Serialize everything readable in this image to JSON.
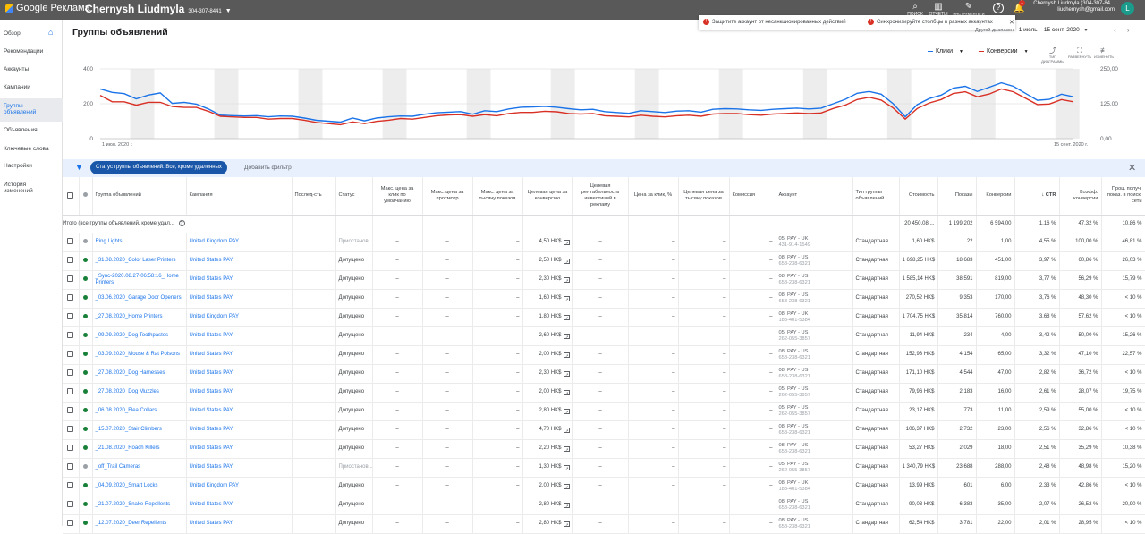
{
  "topbar": {
    "product": "Google Реклама",
    "account_name": "Chernysh Liudmyla",
    "account_id": "304-307-8441",
    "tools": [
      {
        "icon": "search-icon",
        "label": "ПОИСК"
      },
      {
        "icon": "chart-icon",
        "label": "ОТЧЕТЫ"
      },
      {
        "icon": "wrench-icon",
        "label": "ИНСТРУМЕНТЫ И НАСТРОЙКИ"
      }
    ],
    "notifications_count": "1",
    "user_line1": "Chernysh Liudmyla (304-307-84...",
    "user_line2": "liuchernysh@gmail.com",
    "avatar_letter": "L"
  },
  "banner": {
    "alert1": "Защитите аккаунт от несанкционированных действий",
    "alert2": "Синхронизируйте столбцы в разных аккаунтах"
  },
  "sidebar": {
    "items": [
      {
        "label": "Обзор"
      },
      {
        "label": "Рекомендации"
      },
      {
        "label": "Аккаунты"
      },
      {
        "label": "Кампании"
      },
      {
        "label": "Группы объявлений",
        "active": true
      },
      {
        "label": "Объявления"
      },
      {
        "label": "Ключевые слова"
      },
      {
        "label": "Настройки"
      },
      {
        "label": "История изменений"
      }
    ]
  },
  "header": {
    "title": "Группы объявлений",
    "date_label": "Другой диапазон",
    "date_range": "1 июль – 15 сент. 2020"
  },
  "chart_data": {
    "type": "line",
    "x_start_label": "1 июл. 2020 г.",
    "x_end_label": "15 сент. 2020 г.",
    "left_axis_ticks": [
      "400",
      "200",
      "0"
    ],
    "right_axis_ticks": [
      "250,00",
      "125,00",
      "0,00"
    ],
    "left_ylim": [
      0,
      400
    ],
    "right_ylim": [
      0,
      250
    ],
    "grid": true,
    "series": [
      {
        "name": "Клики",
        "color": "#1a73e8",
        "axis": "left",
        "values": [
          285,
          265,
          258,
          228,
          250,
          262,
          202,
          208,
          198,
          170,
          135,
          132,
          130,
          132,
          125,
          130,
          128,
          118,
          105,
          100,
          95,
          118,
          102,
          118,
          125,
          130,
          128,
          140,
          148,
          152,
          155,
          140,
          160,
          155,
          170,
          180,
          182,
          185,
          180,
          172,
          165,
          168,
          155,
          150,
          145,
          160,
          155,
          150,
          158,
          160,
          152,
          168,
          172,
          170,
          165,
          162,
          168,
          172,
          175,
          170,
          175,
          200,
          225,
          260,
          270,
          255,
          200,
          125,
          195,
          230,
          250,
          290,
          300,
          270,
          295,
          320,
          300,
          260,
          220,
          225,
          255,
          240
        ]
      },
      {
        "name": "Конверсии",
        "color": "#d93025",
        "axis": "right",
        "values": [
          155,
          132,
          132,
          120,
          130,
          130,
          115,
          112,
          112,
          98,
          80,
          78,
          76,
          76,
          70,
          72,
          72,
          66,
          58,
          54,
          50,
          60,
          54,
          62,
          66,
          72,
          70,
          76,
          82,
          85,
          86,
          80,
          86,
          82,
          90,
          94,
          94,
          98,
          96,
          90,
          88,
          90,
          82,
          80,
          78,
          84,
          80,
          78,
          82,
          84,
          80,
          88,
          90,
          90,
          86,
          84,
          88,
          90,
          92,
          90,
          92,
          108,
          120,
          140,
          148,
          138,
          110,
          70,
          108,
          128,
          140,
          162,
          168,
          150,
          160,
          178,
          168,
          145,
          122,
          124,
          140,
          132
        ]
      }
    ],
    "tools": [
      "ТИП ДИАГРАММЫ",
      "РАЗВЕРНУТЬ",
      "ИЗМЕНИТЬ"
    ]
  },
  "filter": {
    "chip": "Статус группы объявлений: Все, кроме удаленных",
    "add": "Добавить фильтр"
  },
  "table": {
    "headers": [
      "Группа объявлений",
      "Кампания",
      "Послед-сть",
      "Статус",
      "Макс. цена за клик по умолчанию",
      "Макс. цена за просмотр",
      "Макс. цена за тысячу показов",
      "Целевая цена за конверсию",
      "Целевая рентабельность инвестиций в рекламу",
      "Цена за клик, %",
      "Целевая цена за тысячу показов",
      "Комиссия",
      "Аккаунт",
      "Тип группы объявлений",
      "Стоимость",
      "Показы",
      "Конверсии",
      "CTR",
      "Коэфф. конверсии",
      "Проц. получ. показ. в поиск. сети"
    ],
    "total": {
      "label": "Итого (все группы объявлений, кроме удал...",
      "cost": "20 450,08 ...",
      "impr": "1 199 202",
      "conv": "6 594,00",
      "ctr": "1,16 %",
      "conv_rate": "47,32 %",
      "share": "10,86 %"
    },
    "rows": [
      {
        "status_dot": "grey",
        "name": "Ring Lights",
        "campaign": "United Kingdom PAY",
        "status": "Приостанов...",
        "bid": "4,50 HK$",
        "account": "05. PAY - UK",
        "account_id": "431-914-1549",
        "type": "Стандартная",
        "cost": "1,60 HK$",
        "impr": "22",
        "conv": "1,00",
        "ctr": "4,55 %",
        "conv_rate": "100,00 %",
        "share": "46,81 %"
      },
      {
        "status_dot": "green",
        "name": "_31.08.2020_Color Laser Printers",
        "campaign": "United States PAY",
        "status": "Допущено",
        "bid": "2,50 HK$",
        "account": "08. PAY - US",
        "account_id": "658-238-6321",
        "type": "Стандартная",
        "cost": "1 698,25 HK$",
        "impr": "18 683",
        "conv": "451,00",
        "ctr": "3,97 %",
        "conv_rate": "60,86 %",
        "share": "26,03 %"
      },
      {
        "status_dot": "green",
        "name": "_Sync-2020.08.27-06:58:16_Home Printers",
        "campaign": "United States PAY",
        "status": "Допущено",
        "bid": "2,30 HK$",
        "account": "08. PAY - US",
        "account_id": "658-238-6321",
        "type": "Стандартная",
        "cost": "1 585,14 HK$",
        "impr": "38 591",
        "conv": "819,00",
        "ctr": "3,77 %",
        "conv_rate": "56,29 %",
        "share": "15,79 %"
      },
      {
        "status_dot": "green",
        "name": "_03.06.2020_Garage Door Openers",
        "campaign": "United States PAY",
        "status": "Допущено",
        "bid": "1,60 HK$",
        "account": "08. PAY - US",
        "account_id": "658-238-6321",
        "type": "Стандартная",
        "cost": "270,52 HK$",
        "impr": "9 353",
        "conv": "170,00",
        "ctr": "3,76 %",
        "conv_rate": "48,30 %",
        "share": "< 10 %"
      },
      {
        "status_dot": "green",
        "name": "_27.08.2020_Home Printers",
        "campaign": "United Kingdom PAY",
        "status": "Допущено",
        "bid": "1,80 HK$",
        "account": "08. PAY - UK",
        "account_id": "183-401-5384",
        "type": "Стандартная",
        "cost": "1 704,75 HK$",
        "impr": "35 814",
        "conv": "760,00",
        "ctr": "3,68 %",
        "conv_rate": "57,62 %",
        "share": "< 10 %"
      },
      {
        "status_dot": "green",
        "name": "_09.09.2020_Dog Toothpastes",
        "campaign": "United States PAY",
        "status": "Допущено",
        "bid": "2,60 HK$",
        "account": "05. PAY - US",
        "account_id": "262-055-3857",
        "type": "Стандартная",
        "cost": "11,94 HK$",
        "impr": "234",
        "conv": "4,00",
        "ctr": "3,42 %",
        "conv_rate": "50,00 %",
        "share": "15,26 %"
      },
      {
        "status_dot": "green",
        "name": "_03.09.2020_Mouse & Rat Poisons",
        "campaign": "United States PAY",
        "status": "Допущено",
        "bid": "2,00 HK$",
        "account": "08. PAY - US",
        "account_id": "658-238-6321",
        "type": "Стандартная",
        "cost": "152,93 HK$",
        "impr": "4 154",
        "conv": "65,00",
        "ctr": "3,32 %",
        "conv_rate": "47,10 %",
        "share": "22,57 %"
      },
      {
        "status_dot": "green",
        "name": "_27.08.2020_Dog Harnesses",
        "campaign": "United States PAY",
        "status": "Допущено",
        "bid": "2,30 HK$",
        "account": "08. PAY - US",
        "account_id": "658-238-6321",
        "type": "Стандартная",
        "cost": "171,10 HK$",
        "impr": "4 544",
        "conv": "47,00",
        "ctr": "2,82 %",
        "conv_rate": "36,72 %",
        "share": "< 10 %"
      },
      {
        "status_dot": "green",
        "name": "_27.08.2020_Dog Muzzles",
        "campaign": "United States PAY",
        "status": "Допущено",
        "bid": "2,00 HK$",
        "account": "05. PAY - US",
        "account_id": "262-055-3857",
        "type": "Стандартная",
        "cost": "79,96 HK$",
        "impr": "2 183",
        "conv": "16,00",
        "ctr": "2,61 %",
        "conv_rate": "28,07 %",
        "share": "19,75 %"
      },
      {
        "status_dot": "green",
        "name": "_06.08.2020_Flea Collars",
        "campaign": "United States PAY",
        "status": "Допущено",
        "bid": "2,80 HK$",
        "account": "05. PAY - US",
        "account_id": "262-055-3857",
        "type": "Стандартная",
        "cost": "23,17 HK$",
        "impr": "773",
        "conv": "11,00",
        "ctr": "2,59 %",
        "conv_rate": "55,00 %",
        "share": "< 10 %"
      },
      {
        "status_dot": "green",
        "name": "_15.07.2020_Stair Climbers",
        "campaign": "United States PAY",
        "status": "Допущено",
        "bid": "4,70 HK$",
        "account": "08. PAY - US",
        "account_id": "658-238-6321",
        "type": "Стандартная",
        "cost": "106,37 HK$",
        "impr": "2 732",
        "conv": "23,00",
        "ctr": "2,56 %",
        "conv_rate": "32,86 %",
        "share": "< 10 %"
      },
      {
        "status_dot": "green",
        "name": "_21.08.2020_Roach Killers",
        "campaign": "United States PAY",
        "status": "Допущено",
        "bid": "2,20 HK$",
        "account": "08. PAY - US",
        "account_id": "658-238-6321",
        "type": "Стандартная",
        "cost": "53,27 HK$",
        "impr": "2 029",
        "conv": "18,00",
        "ctr": "2,51 %",
        "conv_rate": "35,29 %",
        "share": "10,38 %"
      },
      {
        "status_dot": "grey",
        "name": "_off_Trail Cameras",
        "campaign": "United States PAY",
        "status": "Приостанов...",
        "bid": "1,30 HK$",
        "account": "05. PAY - US",
        "account_id": "262-055-3857",
        "type": "Стандартная",
        "cost": "1 340,79 HK$",
        "impr": "23 688",
        "conv": "288,00",
        "ctr": "2,48 %",
        "conv_rate": "48,98 %",
        "share": "15,20 %"
      },
      {
        "status_dot": "green",
        "name": "_04.09.2020_Smart Locks",
        "campaign": "United Kingdom PAY",
        "status": "Допущено",
        "bid": "2,00 HK$",
        "account": "08. PAY - UK",
        "account_id": "183-401-5384",
        "type": "Стандартная",
        "cost": "13,99 HK$",
        "impr": "601",
        "conv": "6,00",
        "ctr": "2,33 %",
        "conv_rate": "42,86 %",
        "share": "< 10 %"
      },
      {
        "status_dot": "green",
        "name": "_21.07.2020_Snake Repellents",
        "campaign": "United States PAY",
        "status": "Допущено",
        "bid": "2,80 HK$",
        "account": "08. PAY - US",
        "account_id": "658-238-6321",
        "type": "Стандартная",
        "cost": "90,03 HK$",
        "impr": "6 383",
        "conv": "35,00",
        "ctr": "2,07 %",
        "conv_rate": "26,52 %",
        "share": "20,90 %"
      },
      {
        "status_dot": "green",
        "name": "_12.07.2020_Deer Repellents",
        "campaign": "United States PAY",
        "status": "Допущено",
        "bid": "2,80 HK$",
        "account": "08. PAY - US",
        "account_id": "658-238-6321",
        "type": "Стандартная",
        "cost": "62,54 HK$",
        "impr": "3 781",
        "conv": "22,00",
        "ctr": "2,01 %",
        "conv_rate": "28,95 %",
        "share": "< 10 %"
      }
    ]
  }
}
